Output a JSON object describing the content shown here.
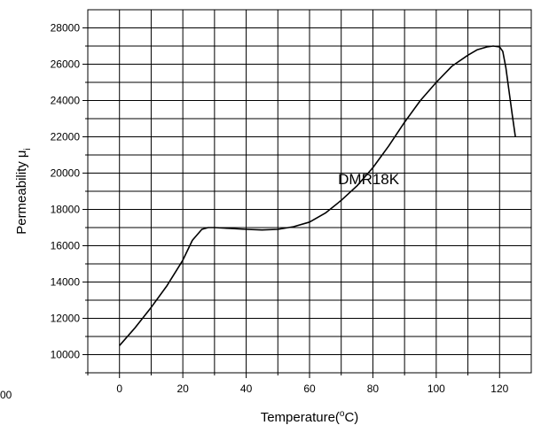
{
  "chart_data": {
    "type": "line",
    "title": "",
    "xlabel": "Temperature(°C)",
    "xlabel_parts": {
      "prefix": "Temperature(",
      "sup": "o",
      "suffix": "C)"
    },
    "ylabel": "Permeability μi",
    "ylabel_parts": {
      "main": "Permeability  μ",
      "sub": "i"
    },
    "xlim": [
      -10,
      130
    ],
    "ylim": [
      9000,
      29000
    ],
    "x_ticks": [
      0,
      20,
      40,
      60,
      80,
      100,
      120
    ],
    "x_tick_labels": [
      "0",
      "20",
      "40",
      "60",
      "80",
      "100",
      "120"
    ],
    "y_ticks": [
      10000,
      12000,
      14000,
      16000,
      18000,
      20000,
      22000,
      24000,
      26000,
      28000
    ],
    "y_tick_labels": [
      "10000",
      "12000",
      "14000",
      "16000",
      "18000",
      "20000",
      "22000",
      "24000",
      "26000",
      "28000"
    ],
    "x_grid": [
      -10,
      0,
      10,
      20,
      30,
      40,
      50,
      60,
      70,
      80,
      90,
      100,
      110,
      120
    ],
    "y_grid": [
      9000,
      10000,
      11000,
      12000,
      13000,
      14000,
      15000,
      16000,
      17000,
      18000,
      19000,
      20000,
      21000,
      22000,
      23000,
      24000,
      25000,
      26000,
      27000,
      28000
    ],
    "grid": true,
    "partial_left_label": "00",
    "annotation": {
      "text": "DMR18K",
      "x": 69,
      "y": 19400
    },
    "series": [
      {
        "x": [
          0,
          5,
          10,
          15,
          20,
          23,
          26,
          28,
          30,
          35,
          40,
          45,
          50,
          55,
          60,
          65,
          70,
          75,
          80,
          85,
          90,
          95,
          100,
          105,
          110,
          113,
          116,
          118,
          120,
          121,
          122,
          123,
          124,
          125
        ],
        "values": [
          10500,
          11500,
          12600,
          13800,
          15200,
          16300,
          16900,
          17000,
          17000,
          16950,
          16900,
          16870,
          16900,
          17050,
          17300,
          17800,
          18500,
          19300,
          20300,
          21500,
          22800,
          24000,
          25000,
          25900,
          26500,
          26800,
          26950,
          27000,
          26950,
          26700,
          25800,
          24500,
          23200,
          22000
        ],
        "color": "#000000"
      }
    ]
  }
}
